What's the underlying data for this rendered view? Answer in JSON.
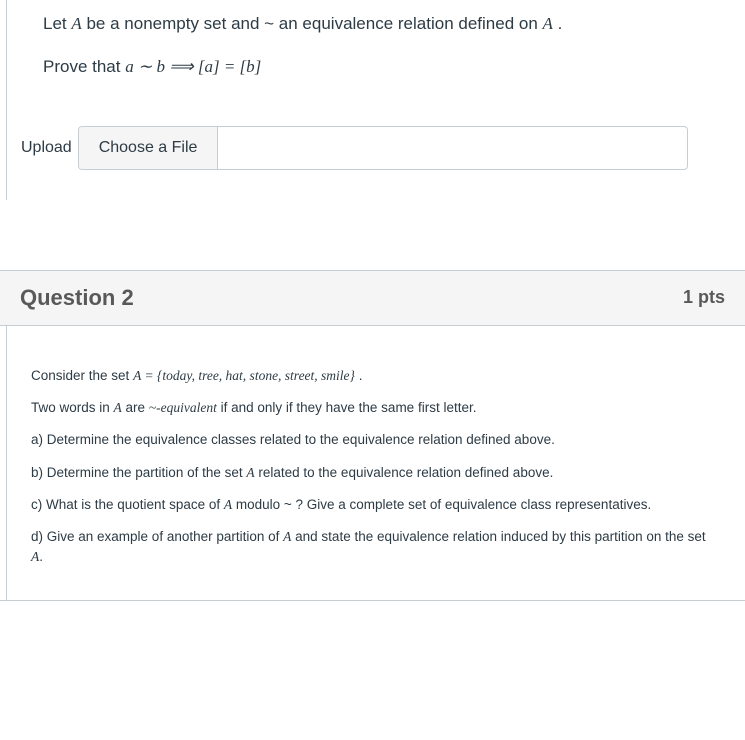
{
  "q1": {
    "line1_pre": "Let ",
    "line1_var1": "A",
    "line1_mid": " be a nonempty set and ~ an equivalence relation defined on ",
    "line1_var2": "A",
    "line1_end": " .",
    "line2_pre": "Prove that ",
    "line2_math": "a ∼ b ⟹ [a] = [b]",
    "upload_label": "Upload",
    "choose_label": "Choose a File",
    "file_value": ""
  },
  "q2": {
    "title": "Question 2",
    "pts": "1 pts",
    "p1_pre": "Consider the set ",
    "p1_math": "A = {today, tree, hat, stone, street, smile}",
    "p1_end": " .",
    "p2_pre": "Two words in ",
    "p2_var": "A",
    "p2_mid": " are ",
    "p2_term": "~-equivalent",
    "p2_end": " if and only if they have the same first letter.",
    "pa": "a) Determine the equivalence classes related to the equivalence relation defined above.",
    "pb_pre": "b) Determine the partition of the set ",
    "pb_var": "A",
    "pb_end": " related to the equivalence relation defined above.",
    "pc_pre": "c) What is the quotient space of ",
    "pc_var": "A",
    "pc_end": " modulo ~ ? Give a complete set of equivalence class representatives.",
    "pd_pre": "d) Give an example of another partition of ",
    "pd_var": "A",
    "pd_mid": " and state the equivalence relation induced by this partition on the set ",
    "pd_var2": "A",
    "pd_end": "."
  },
  "colors": {
    "border": "#c7cdd1",
    "header_bg": "#f5f5f5",
    "text": "#2d3b45",
    "title": "#595959"
  }
}
